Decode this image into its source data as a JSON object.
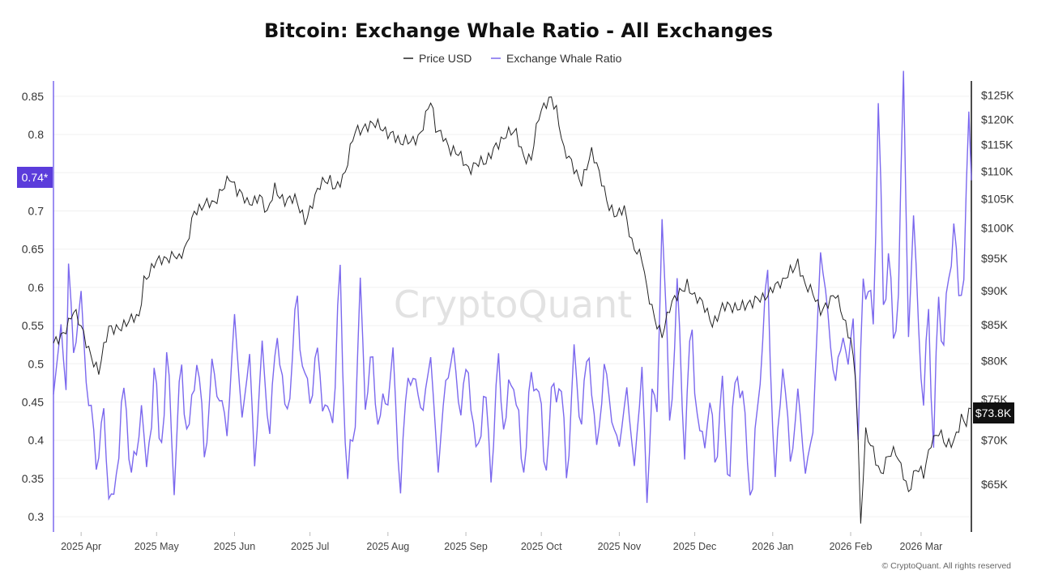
{
  "chart_data": {
    "type": "line",
    "title": "Bitcoin: Exchange Whale Ratio - All Exchanges",
    "legend": [
      {
        "name": "Price USD",
        "color": "#222222"
      },
      {
        "name": "Exchange Whale Ratio",
        "color": "#7b68ee"
      }
    ],
    "legend_position": "top-center",
    "x_start": "2025-03-21",
    "x_end": "2026-03-21",
    "x_tick_labels": [
      "2025 Apr",
      "2025 May",
      "2025 Jun",
      "2025 Jul",
      "2025 Aug",
      "2025 Sep",
      "2025 Oct",
      "2025 Nov",
      "2025 Dec",
      "2026 Jan",
      "2026 Feb",
      "2026 Mar"
    ],
    "y_left": {
      "label": "Exchange Whale Ratio",
      "range": [
        0.28,
        0.87
      ],
      "ticks": [
        "0.85",
        "0.8",
        "0.75",
        "0.7",
        "0.65",
        "0.6",
        "0.55",
        "0.5",
        "0.45",
        "0.4",
        "0.35",
        "0.3"
      ],
      "tick_values": [
        0.85,
        0.8,
        0.75,
        0.7,
        0.65,
        0.6,
        0.55,
        0.5,
        0.45,
        0.4,
        0.35,
        0.3
      ]
    },
    "y_right": {
      "label": "Price USD",
      "range": [
        60000,
        128000
      ],
      "scale": "log",
      "ticks": [
        "$125K",
        "$120K",
        "$115K",
        "$110K",
        "$105K",
        "$100K",
        "$95K",
        "$90K",
        "$85K",
        "$80K",
        "$75K",
        "$70K",
        "$65K"
      ],
      "tick_values": [
        125000,
        120000,
        115000,
        110000,
        105000,
        100000,
        95000,
        90000,
        85000,
        80000,
        75000,
        70000,
        65000
      ]
    },
    "current_whale_ratio_label": "0.74*",
    "current_whale_ratio": 0.74,
    "current_price_label": "$73.8K",
    "current_price": 73800,
    "series": [
      {
        "name": "Price USD",
        "color": "#222222",
        "anchors": [
          [
            0,
            82000
          ],
          [
            4,
            84200
          ],
          [
            8,
            86800
          ],
          [
            12,
            83500
          ],
          [
            15,
            81000
          ],
          [
            18,
            78500
          ],
          [
            22,
            84200
          ],
          [
            26,
            85000
          ],
          [
            30,
            85200
          ],
          [
            34,
            86000
          ],
          [
            36,
            92000
          ],
          [
            40,
            94000
          ],
          [
            44,
            94500
          ],
          [
            48,
            96300
          ],
          [
            50,
            95000
          ],
          [
            53,
            96500
          ],
          [
            56,
            103000
          ],
          [
            60,
            104500
          ],
          [
            64,
            103500
          ],
          [
            68,
            108000
          ],
          [
            70,
            109500
          ],
          [
            73,
            106000
          ],
          [
            77,
            104300
          ],
          [
            82,
            105800
          ],
          [
            85,
            101800
          ],
          [
            88,
            107000
          ],
          [
            92,
            105000
          ],
          [
            96,
            104500
          ],
          [
            100,
            101500
          ],
          [
            103,
            104600
          ],
          [
            106,
            107000
          ],
          [
            110,
            108500
          ],
          [
            112,
            107500
          ],
          [
            116,
            109200
          ],
          [
            120,
            117800
          ],
          [
            124,
            119000
          ],
          [
            128,
            118500
          ],
          [
            131,
            118000
          ],
          [
            135,
            117600
          ],
          [
            138,
            114700
          ],
          [
            142,
            115800
          ],
          [
            146,
            117500
          ],
          [
            150,
            123200
          ],
          [
            152,
            118000
          ],
          [
            155,
            117400
          ],
          [
            158,
            113800
          ],
          [
            162,
            112300
          ],
          [
            165,
            110800
          ],
          [
            168,
            111700
          ],
          [
            172,
            111000
          ],
          [
            176,
            115500
          ],
          [
            180,
            116800
          ],
          [
            184,
            117000
          ],
          [
            187,
            113200
          ],
          [
            190,
            112500
          ],
          [
            193,
            120000
          ],
          [
            196,
            123500
          ],
          [
            198,
            125200
          ],
          [
            200,
            122200
          ],
          [
            203,
            113200
          ],
          [
            206,
            111500
          ],
          [
            210,
            108500
          ],
          [
            214,
            113000
          ],
          [
            218,
            108500
          ],
          [
            221,
            104000
          ],
          [
            224,
            101600
          ],
          [
            227,
            103000
          ],
          [
            230,
            98000
          ],
          [
            234,
            95000
          ],
          [
            236,
            89500
          ],
          [
            239,
            86000
          ],
          [
            242,
            84000
          ],
          [
            245,
            87200
          ],
          [
            248,
            88900
          ],
          [
            252,
            91500
          ],
          [
            255,
            89000
          ],
          [
            258,
            87700
          ],
          [
            262,
            85500
          ],
          [
            266,
            87500
          ],
          [
            270,
            87100
          ],
          [
            274,
            88300
          ],
          [
            278,
            87800
          ],
          [
            282,
            88900
          ],
          [
            286,
            90800
          ],
          [
            290,
            90700
          ],
          [
            293,
            93200
          ],
          [
            296,
            94800
          ],
          [
            299,
            90400
          ],
          [
            302,
            89300
          ],
          [
            305,
            87400
          ],
          [
            308,
            88400
          ],
          [
            311,
            89000
          ],
          [
            314,
            86000
          ],
          [
            317,
            83400
          ],
          [
            319,
            78000
          ],
          [
            321,
            60600
          ],
          [
            323,
            70500
          ],
          [
            326,
            69000
          ],
          [
            329,
            66300
          ],
          [
            332,
            67900
          ],
          [
            335,
            68500
          ],
          [
            338,
            66500
          ],
          [
            340,
            64300
          ],
          [
            343,
            66400
          ],
          [
            346,
            66000
          ],
          [
            349,
            70200
          ],
          [
            352,
            71000
          ],
          [
            355,
            69000
          ],
          [
            358,
            70000
          ],
          [
            361,
            73000
          ],
          [
            363,
            72000
          ],
          [
            365,
            73800
          ]
        ]
      },
      {
        "name": "Exchange Whale Ratio",
        "color": "#7b68ee",
        "anchors": [
          [
            0,
            0.46
          ],
          [
            3,
            0.55
          ],
          [
            5,
            0.47
          ],
          [
            6,
            0.625
          ],
          [
            8,
            0.52
          ],
          [
            11,
            0.58
          ],
          [
            14,
            0.45
          ],
          [
            17,
            0.38
          ],
          [
            20,
            0.42
          ],
          [
            22,
            0.35
          ],
          [
            24,
            0.3
          ],
          [
            27,
            0.46
          ],
          [
            30,
            0.4
          ],
          [
            33,
            0.35
          ],
          [
            35,
            0.48
          ],
          [
            37,
            0.33
          ],
          [
            40,
            0.51
          ],
          [
            42,
            0.38
          ],
          [
            45,
            0.5
          ],
          [
            48,
            0.36
          ],
          [
            51,
            0.49
          ],
          [
            54,
            0.4
          ],
          [
            57,
            0.52
          ],
          [
            60,
            0.38
          ],
          [
            63,
            0.49
          ],
          [
            66,
            0.46
          ],
          [
            69,
            0.41
          ],
          [
            72,
            0.56
          ],
          [
            75,
            0.43
          ],
          [
            78,
            0.51
          ],
          [
            80,
            0.37
          ],
          [
            83,
            0.52
          ],
          [
            86,
            0.41
          ],
          [
            89,
            0.55
          ],
          [
            92,
            0.43
          ],
          [
            95,
            0.5
          ],
          [
            97,
            0.59
          ],
          [
            100,
            0.46
          ],
          [
            103,
            0.48
          ],
          [
            106,
            0.5
          ],
          [
            109,
            0.41
          ],
          [
            112,
            0.48
          ],
          [
            114,
            0.61
          ],
          [
            117,
            0.33
          ],
          [
            120,
            0.45
          ],
          [
            122,
            0.58
          ],
          [
            124,
            0.47
          ],
          [
            127,
            0.49
          ],
          [
            130,
            0.42
          ],
          [
            133,
            0.47
          ],
          [
            135,
            0.5
          ],
          [
            138,
            0.34
          ],
          [
            141,
            0.49
          ],
          [
            144,
            0.47
          ],
          [
            147,
            0.44
          ],
          [
            150,
            0.51
          ],
          [
            153,
            0.36
          ],
          [
            156,
            0.48
          ],
          [
            159,
            0.51
          ],
          [
            162,
            0.44
          ],
          [
            165,
            0.5
          ],
          [
            168,
            0.37
          ],
          [
            171,
            0.46
          ],
          [
            174,
            0.37
          ],
          [
            177,
            0.49
          ],
          [
            180,
            0.42
          ],
          [
            183,
            0.5
          ],
          [
            186,
            0.36
          ],
          [
            189,
            0.44
          ],
          [
            192,
            0.5
          ],
          [
            195,
            0.37
          ],
          [
            198,
            0.44
          ],
          [
            201,
            0.49
          ],
          [
            204,
            0.36
          ],
          [
            207,
            0.5
          ],
          [
            210,
            0.43
          ],
          [
            213,
            0.52
          ],
          [
            216,
            0.38
          ],
          [
            219,
            0.5
          ],
          [
            222,
            0.43
          ],
          [
            225,
            0.39
          ],
          [
            228,
            0.47
          ],
          [
            231,
            0.36
          ],
          [
            234,
            0.5
          ],
          [
            236,
            0.31
          ],
          [
            238,
            0.48
          ],
          [
            240,
            0.42
          ],
          [
            242,
            0.71
          ],
          [
            245,
            0.42
          ],
          [
            248,
            0.59
          ],
          [
            251,
            0.4
          ],
          [
            254,
            0.55
          ],
          [
            257,
            0.38
          ],
          [
            260,
            0.44
          ],
          [
            263,
            0.39
          ],
          [
            266,
            0.45
          ],
          [
            269,
            0.36
          ],
          [
            272,
            0.51
          ],
          [
            275,
            0.41
          ],
          [
            278,
            0.33
          ],
          [
            281,
            0.5
          ],
          [
            284,
            0.61
          ],
          [
            287,
            0.34
          ],
          [
            290,
            0.51
          ],
          [
            293,
            0.37
          ],
          [
            296,
            0.46
          ],
          [
            299,
            0.36
          ],
          [
            302,
            0.41
          ],
          [
            305,
            0.65
          ],
          [
            308,
            0.56
          ],
          [
            311,
            0.47
          ],
          [
            314,
            0.55
          ],
          [
            316,
            0.48
          ],
          [
            318,
            0.58
          ],
          [
            320,
            0.38
          ],
          [
            322,
            0.63
          ],
          [
            324,
            0.58
          ],
          [
            326,
            0.56
          ],
          [
            328,
            0.84
          ],
          [
            330,
            0.57
          ],
          [
            332,
            0.66
          ],
          [
            334,
            0.51
          ],
          [
            336,
            0.62
          ],
          [
            338,
            0.85
          ],
          [
            340,
            0.57
          ],
          [
            342,
            0.66
          ],
          [
            344,
            0.58
          ],
          [
            346,
            0.42
          ],
          [
            348,
            0.59
          ],
          [
            350,
            0.38
          ],
          [
            352,
            0.59
          ],
          [
            354,
            0.53
          ],
          [
            356,
            0.6
          ],
          [
            358,
            0.7
          ],
          [
            360,
            0.57
          ],
          [
            362,
            0.63
          ],
          [
            364,
            0.83
          ],
          [
            365,
            0.74
          ]
        ]
      }
    ],
    "watermark": "CryptoQuant",
    "copyright": "© CryptoQuant. All rights reserved"
  }
}
